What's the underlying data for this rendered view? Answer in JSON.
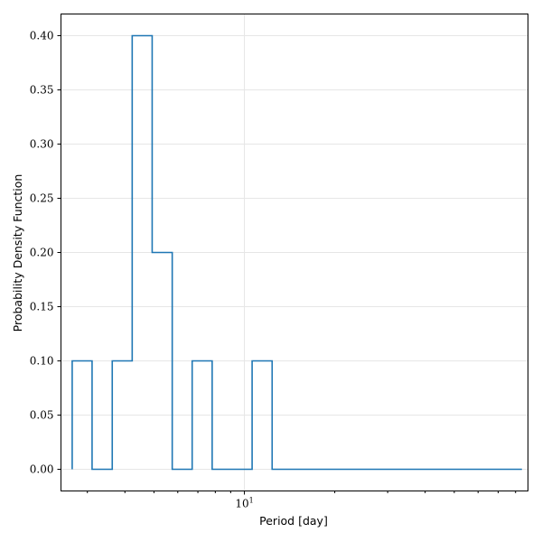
{
  "chart_data": {
    "type": "histogram-step",
    "xlabel": "Period [day]",
    "ylabel": "Probability Density Function",
    "xscale": "log",
    "xlim": [
      2.45,
      88
    ],
    "ylim": [
      -0.02,
      0.42
    ],
    "grid": true,
    "yticks": [
      "0.00",
      "0.05",
      "0.10",
      "0.15",
      "0.20",
      "0.25",
      "0.30",
      "0.35",
      "0.40"
    ],
    "yticks_values": [
      0,
      0.05,
      0.1,
      0.15,
      0.2,
      0.25,
      0.3,
      0.35,
      0.4
    ],
    "xtick_major": {
      "base": "10",
      "exp": "1",
      "value": 10
    },
    "colors": {
      "line": "#1f77b4"
    },
    "series": [
      {
        "bin_edges": [
          2.67,
          3.11,
          3.63,
          4.23,
          4.93,
          5.75,
          6.7,
          7.81,
          9.1,
          10.61,
          12.37,
          84.0
        ],
        "values": [
          0.1,
          0.0,
          0.1,
          0.4,
          0.2,
          0.0,
          0.1,
          0.0,
          0.0,
          0.1,
          0.0
        ]
      }
    ]
  }
}
